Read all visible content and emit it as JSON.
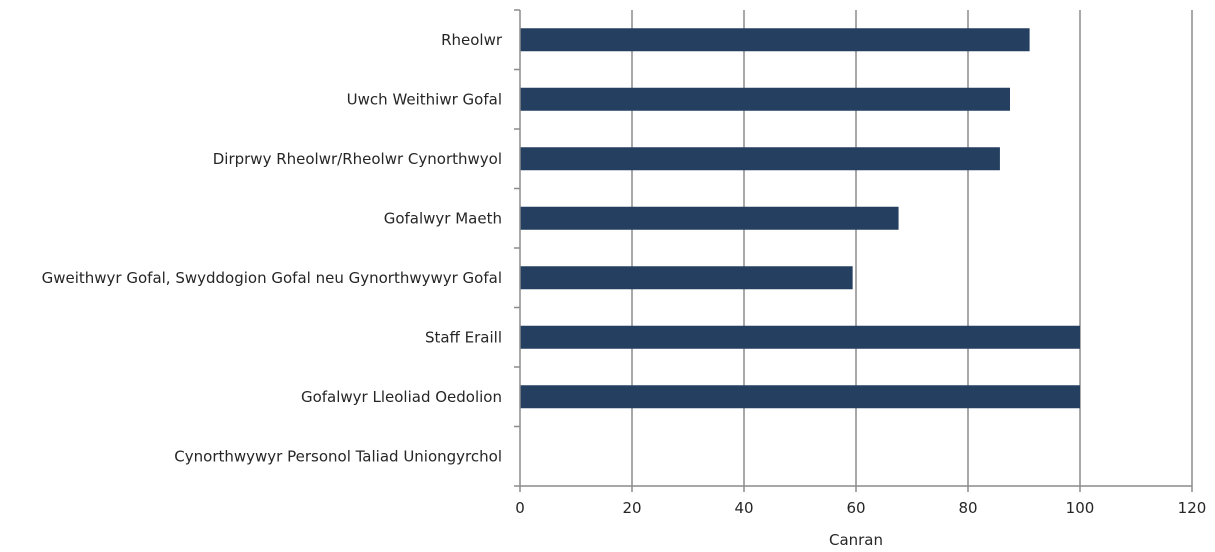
{
  "chart_data": {
    "type": "bar",
    "orientation": "horizontal",
    "categories": [
      "Rheolwr",
      "Uwch Weithiwr Gofal",
      "Dirprwy Rheolwr/Rheolwr Cynorthwyol",
      "Gofalwyr Maeth",
      "Gweithwyr Gofal, Swyddogion Gofal neu Gynorthwywyr Gofal",
      "Staff Eraill",
      "Gofalwyr Lleoliad Oedolion",
      "Cynorthwywyr Personol Taliad Uniongyrchol"
    ],
    "values": [
      91,
      87.5,
      85.7,
      67.6,
      59.4,
      100,
      100,
      0
    ],
    "xlabel": "Canran",
    "ylabel": "",
    "title": "",
    "xlim": [
      0,
      120
    ],
    "xticks": [
      0,
      20,
      40,
      60,
      80,
      100,
      120
    ],
    "grid": "vertical",
    "legend": "none",
    "bar_color": "#243F60",
    "grid_color": "#8C8C8C"
  }
}
